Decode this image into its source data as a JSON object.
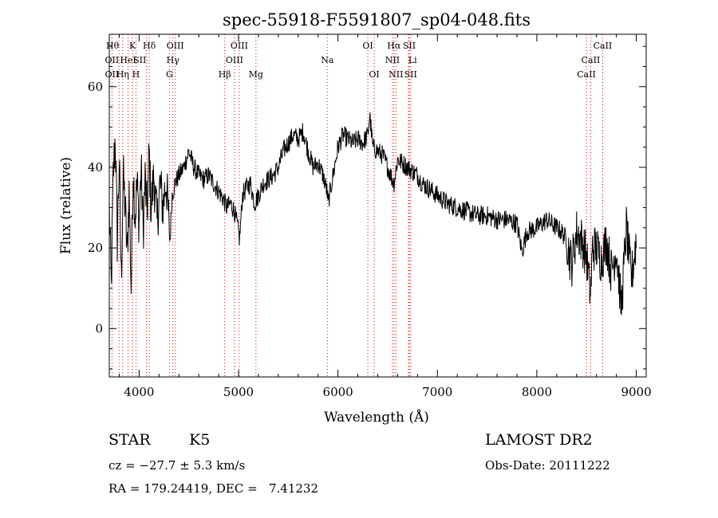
{
  "chart_data": {
    "type": "line",
    "title": "spec-55918-F5591807_sp04-048.fits",
    "xlabel": "Wavelength (Å)",
    "ylabel": "Flux (relative)",
    "xlim": [
      3700,
      9100
    ],
    "ylim": [
      -12,
      73
    ],
    "xticks": [
      4000,
      5000,
      6000,
      7000,
      8000,
      9000
    ],
    "yticks": [
      0,
      20,
      40,
      60
    ],
    "line_color": "#000000",
    "marker_color": "#ff0000",
    "anchors": [
      [
        3700,
        30
      ],
      [
        3720,
        10
      ],
      [
        3740,
        38
      ],
      [
        3760,
        48
      ],
      [
        3780,
        22
      ],
      [
        3800,
        42
      ],
      [
        3820,
        12
      ],
      [
        3840,
        38
      ],
      [
        3860,
        30
      ],
      [
        3880,
        18
      ],
      [
        3900,
        34
      ],
      [
        3920,
        10
      ],
      [
        3940,
        40
      ],
      [
        3960,
        28
      ],
      [
        3980,
        36
      ],
      [
        4000,
        26
      ],
      [
        4020,
        40
      ],
      [
        4040,
        24
      ],
      [
        4060,
        37
      ],
      [
        4080,
        28
      ],
      [
        4100,
        44
      ],
      [
        4120,
        30
      ],
      [
        4150,
        38
      ],
      [
        4180,
        26
      ],
      [
        4210,
        36
      ],
      [
        4240,
        30
      ],
      [
        4270,
        37
      ],
      [
        4300,
        26
      ],
      [
        4310,
        21
      ],
      [
        4330,
        33
      ],
      [
        4360,
        36
      ],
      [
        4400,
        38
      ],
      [
        4450,
        40
      ],
      [
        4500,
        44
      ],
      [
        4550,
        40
      ],
      [
        4600,
        38
      ],
      [
        4650,
        37
      ],
      [
        4700,
        38
      ],
      [
        4750,
        36
      ],
      [
        4800,
        34
      ],
      [
        4850,
        32
      ],
      [
        4880,
        30
      ],
      [
        4920,
        31
      ],
      [
        4960,
        29
      ],
      [
        5000,
        24
      ],
      [
        5010,
        22
      ],
      [
        5040,
        33
      ],
      [
        5080,
        35
      ],
      [
        5120,
        36
      ],
      [
        5160,
        31
      ],
      [
        5200,
        33
      ],
      [
        5250,
        36
      ],
      [
        5300,
        37
      ],
      [
        5350,
        38
      ],
      [
        5400,
        40
      ],
      [
        5450,
        44
      ],
      [
        5500,
        46
      ],
      [
        5550,
        48
      ],
      [
        5600,
        47
      ],
      [
        5650,
        49
      ],
      [
        5700,
        44
      ],
      [
        5750,
        40
      ],
      [
        5800,
        41
      ],
      [
        5850,
        38
      ],
      [
        5890,
        34
      ],
      [
        5900,
        31
      ],
      [
        5950,
        38
      ],
      [
        6000,
        45
      ],
      [
        6050,
        48
      ],
      [
        6100,
        47
      ],
      [
        6150,
        46
      ],
      [
        6200,
        47
      ],
      [
        6250,
        46
      ],
      [
        6300,
        48
      ],
      [
        6320,
        53
      ],
      [
        6350,
        45
      ],
      [
        6400,
        44
      ],
      [
        6450,
        43
      ],
      [
        6500,
        40
      ],
      [
        6563,
        36
      ],
      [
        6600,
        42
      ],
      [
        6650,
        41
      ],
      [
        6700,
        40
      ],
      [
        6750,
        39
      ],
      [
        6800,
        38
      ],
      [
        6850,
        36
      ],
      [
        6900,
        35
      ],
      [
        6950,
        34
      ],
      [
        7000,
        33
      ],
      [
        7100,
        31
      ],
      [
        7200,
        30
      ],
      [
        7300,
        29
      ],
      [
        7400,
        28
      ],
      [
        7500,
        28
      ],
      [
        7600,
        27
      ],
      [
        7700,
        27
      ],
      [
        7800,
        26
      ],
      [
        7850,
        19
      ],
      [
        7900,
        24
      ],
      [
        8000,
        25
      ],
      [
        8100,
        27
      ],
      [
        8200,
        25
      ],
      [
        8250,
        24
      ],
      [
        8300,
        22
      ],
      [
        8330,
        18
      ],
      [
        8350,
        16
      ],
      [
        8400,
        24
      ],
      [
        8450,
        22
      ],
      [
        8500,
        18
      ],
      [
        8540,
        8
      ],
      [
        8560,
        20
      ],
      [
        8600,
        20
      ],
      [
        8650,
        17
      ],
      [
        8700,
        22
      ],
      [
        8750,
        14
      ],
      [
        8800,
        20
      ],
      [
        8850,
        5
      ],
      [
        8900,
        25
      ],
      [
        8950,
        12
      ],
      [
        9000,
        22
      ]
    ],
    "spectral_lines": [
      {
        "label": "Hθ",
        "x": 3798,
        "row": 0,
        "anchor": "end"
      },
      {
        "label": "K",
        "x": 3934,
        "row": 0,
        "anchor": "middle"
      },
      {
        "label": "Hδ",
        "x": 4102,
        "row": 0,
        "anchor": "middle"
      },
      {
        "label": "OIII",
        "x": 4363,
        "row": 0,
        "anchor": "middle"
      },
      {
        "label": "OIII",
        "x": 5007,
        "row": 0,
        "anchor": "middle"
      },
      {
        "label": "OI",
        "x": 6300,
        "row": 0,
        "anchor": "middle"
      },
      {
        "label": "Hα",
        "x": 6563,
        "row": 0,
        "anchor": "middle"
      },
      {
        "label": "SII",
        "x": 6717,
        "row": 0,
        "anchor": "middle"
      },
      {
        "label": "CaII",
        "x": 8662,
        "row": 0,
        "anchor": "middle"
      },
      {
        "label": "OII",
        "x": 3727,
        "row": 1,
        "anchor": "middle"
      },
      {
        "label": "HeI",
        "x": 3889,
        "row": 1,
        "anchor": "middle"
      },
      {
        "label": "SII",
        "x": 4072,
        "row": 1,
        "anchor": "end"
      },
      {
        "label": "Hγ",
        "x": 4340,
        "row": 1,
        "anchor": "middle"
      },
      {
        "label": "OIII",
        "x": 4959,
        "row": 1,
        "anchor": "middle"
      },
      {
        "label": "Na",
        "x": 5893,
        "row": 1,
        "anchor": "middle"
      },
      {
        "label": "NII",
        "x": 6548,
        "row": 1,
        "anchor": "middle"
      },
      {
        "label": "Li",
        "x": 6708,
        "row": 1,
        "anchor": "start"
      },
      {
        "label": "CaII",
        "x": 8542,
        "row": 1,
        "anchor": "middle"
      },
      {
        "label": "OII",
        "x": 3727,
        "row": 2,
        "anchor": "middle"
      },
      {
        "label": "Hη",
        "x": 3835,
        "row": 2,
        "anchor": "middle"
      },
      {
        "label": "H",
        "x": 3968,
        "row": 2,
        "anchor": "middle"
      },
      {
        "label": "G",
        "x": 4305,
        "row": 2,
        "anchor": "middle"
      },
      {
        "label": "Hβ",
        "x": 4861,
        "row": 2,
        "anchor": "middle"
      },
      {
        "label": "Mg",
        "x": 5175,
        "row": 2,
        "anchor": "middle"
      },
      {
        "label": "OI",
        "x": 6364,
        "row": 2,
        "anchor": "middle"
      },
      {
        "label": "NII",
        "x": 6583,
        "row": 2,
        "anchor": "middle"
      },
      {
        "label": "SII",
        "x": 6731,
        "row": 2,
        "anchor": "middle"
      },
      {
        "label": "CaII",
        "x": 8498,
        "row": 2,
        "anchor": "middle"
      }
    ]
  },
  "info": {
    "object_class": "STAR",
    "subclass": "K5",
    "survey": "LAMOST DR2",
    "redshift": "cz = −27.7 ± 5.3 km/s",
    "obs_date": "Obs-Date: 20111222",
    "coords": "RA = 179.24419, DEC =   7.41232"
  }
}
